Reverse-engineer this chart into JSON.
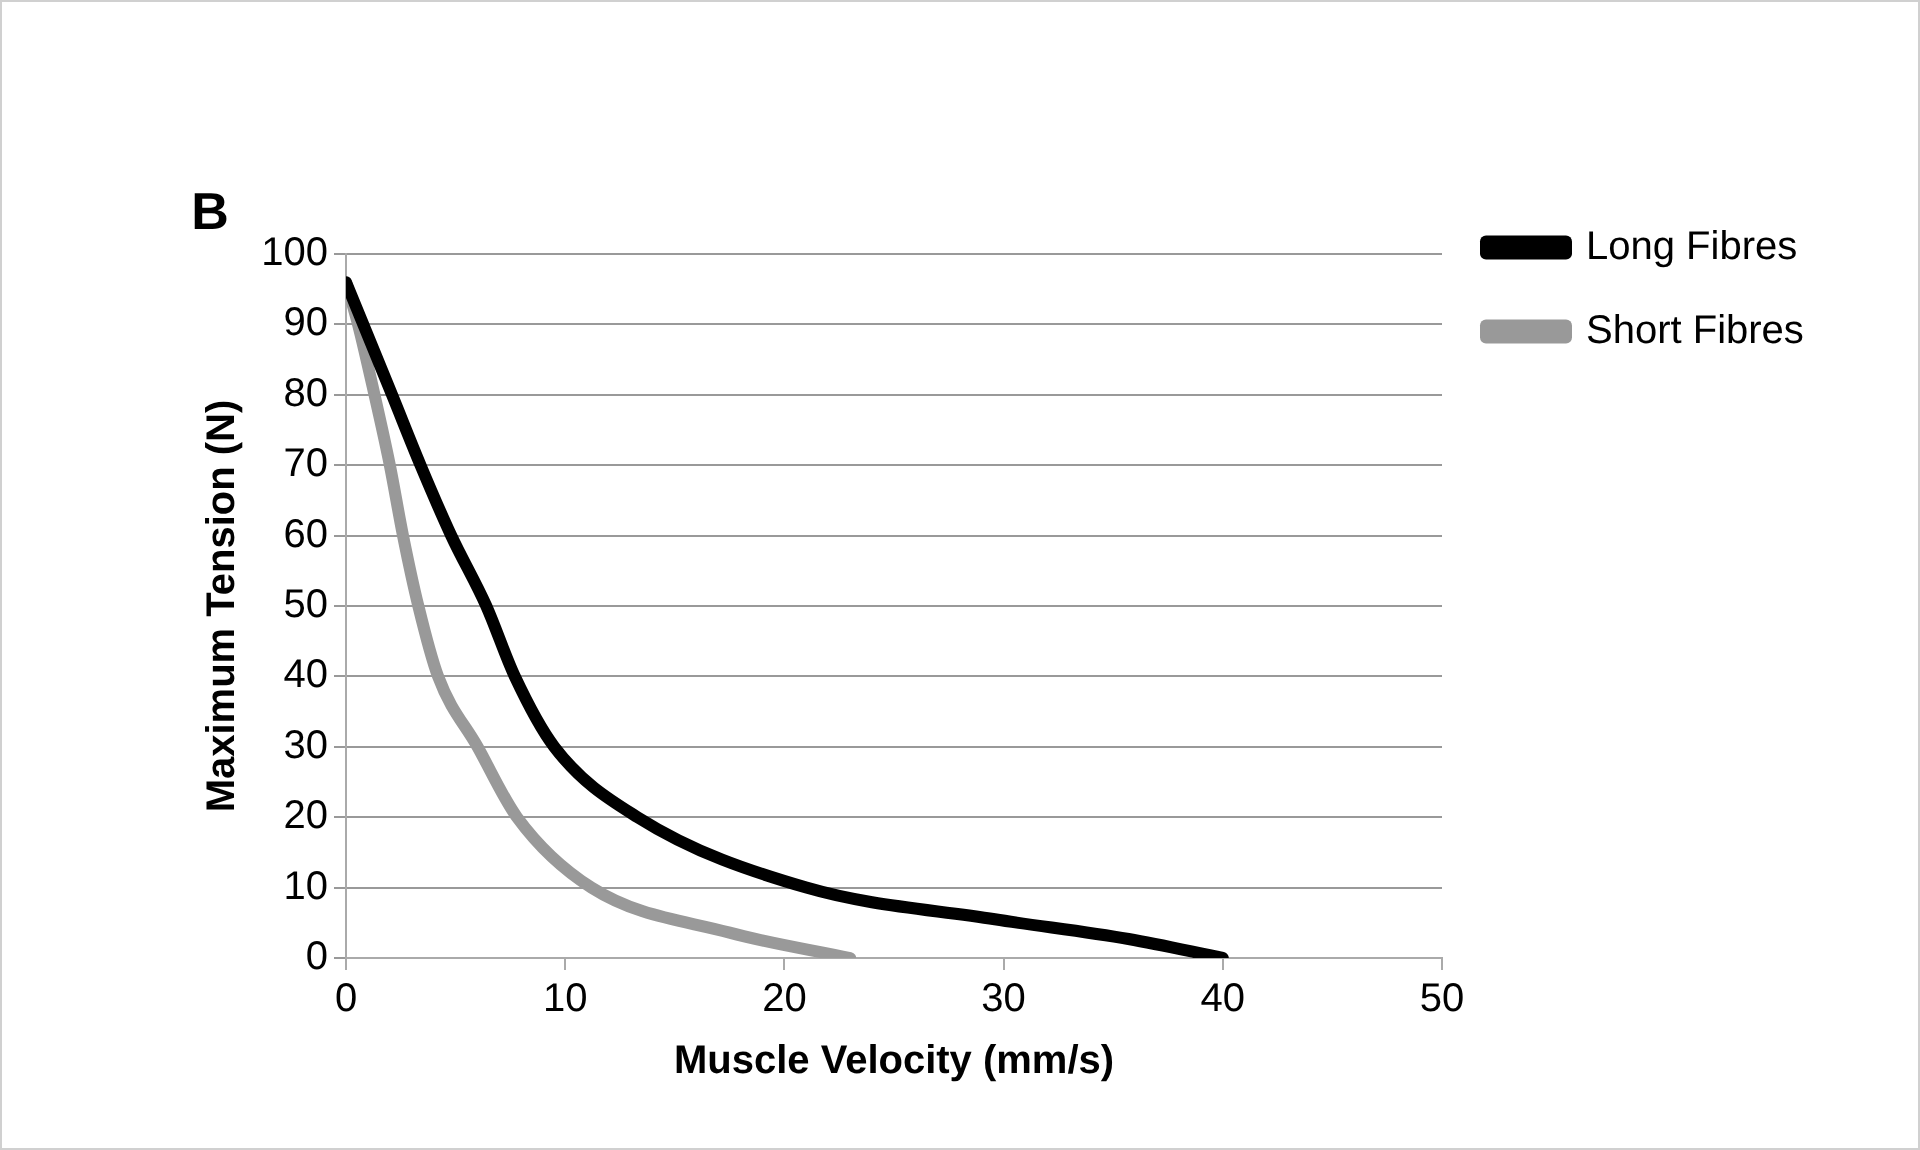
{
  "chart_data": {
    "type": "line",
    "title": "B",
    "xlabel": "Muscle Velocity (mm/s)",
    "ylabel": "Maximum Tension (N)",
    "xlim": [
      0,
      50
    ],
    "xticks": [
      0,
      10,
      20,
      30,
      40,
      50
    ],
    "ylim": [
      0,
      100
    ],
    "yticks": [
      0,
      10,
      20,
      30,
      40,
      50,
      60,
      70,
      80,
      90,
      100
    ],
    "grid": "y",
    "legend": "top right",
    "marker": "none",
    "line_style": "solid",
    "series": [
      {
        "name": "Long Fibres",
        "color": "#000000",
        "x": [
          0,
          2.1,
          3.4,
          4.8,
          6.4,
          7.7,
          9.5,
          13.3,
          21,
          29.6,
          35.7,
          40
        ],
        "values": [
          96,
          80,
          70,
          60,
          50,
          40,
          30,
          20,
          10,
          5.5,
          2.7,
          0
        ]
      },
      {
        "name": "Short Fibres",
        "color": "#999999",
        "x": [
          0,
          0.55,
          1.3,
          2,
          2.6,
          3.3,
          4.2,
          6,
          7.8,
          11.2,
          17.5,
          23
        ],
        "values": [
          96,
          90,
          80,
          70,
          60,
          50,
          40,
          30,
          20,
          10,
          3.6,
          0
        ]
      }
    ]
  }
}
